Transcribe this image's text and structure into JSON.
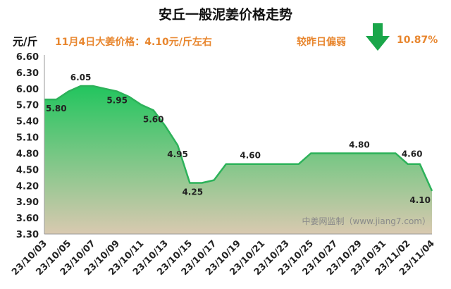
{
  "header": {
    "title": "安丘一般泥姜价格走势",
    "unit": "元/斤",
    "price_note": "11月4日大姜价格：4.10元/斤左右",
    "compare_label": "较昨日偏弱",
    "compare_value": "10.87%",
    "arrow_icon": "arrow-down-icon",
    "arrow_color": "#1aa64a"
  },
  "watermark": "中姜网监制（www.jiang7.com）",
  "chart_data": {
    "type": "area",
    "title": "安丘一般泥姜价格走势",
    "ylabel": "元/斤",
    "ylim": [
      3.3,
      6.6
    ],
    "yticks": [
      "3.30",
      "3.60",
      "3.90",
      "4.20",
      "4.50",
      "4.80",
      "5.10",
      "5.40",
      "5.70",
      "6.00",
      "6.30",
      "6.60"
    ],
    "xticks": [
      "23/10/03",
      "23/10/05",
      "23/10/07",
      "23/10/09",
      "23/10/11",
      "23/10/13",
      "23/10/15",
      "23/10/17",
      "23/10/19",
      "23/10/21",
      "23/10/23",
      "23/10/25",
      "23/10/27",
      "23/10/29",
      "23/10/31",
      "23/11/02",
      "23/11/04"
    ],
    "x": [
      "23/10/03",
      "23/10/04",
      "23/10/05",
      "23/10/06",
      "23/10/07",
      "23/10/08",
      "23/10/09",
      "23/10/10",
      "23/10/11",
      "23/10/12",
      "23/10/13",
      "23/10/14",
      "23/10/15",
      "23/10/16",
      "23/10/17",
      "23/10/18",
      "23/10/19",
      "23/10/20",
      "23/10/21",
      "23/10/22",
      "23/10/23",
      "23/10/24",
      "23/10/25",
      "23/10/26",
      "23/10/27",
      "23/10/28",
      "23/10/29",
      "23/10/30",
      "23/10/31",
      "23/11/01",
      "23/11/02",
      "23/11/03",
      "23/11/04"
    ],
    "values": [
      5.8,
      5.8,
      5.95,
      6.05,
      6.05,
      6.0,
      5.95,
      5.85,
      5.7,
      5.6,
      5.3,
      4.95,
      4.25,
      4.25,
      4.3,
      4.6,
      4.6,
      4.6,
      4.6,
      4.6,
      4.6,
      4.6,
      4.8,
      4.8,
      4.8,
      4.8,
      4.8,
      4.8,
      4.8,
      4.8,
      4.6,
      4.6,
      4.1
    ],
    "data_labels": [
      {
        "index": 0,
        "text": "5.80"
      },
      {
        "index": 3,
        "text": "6.05"
      },
      {
        "index": 6,
        "text": "5.95"
      },
      {
        "index": 9,
        "text": "5.60"
      },
      {
        "index": 11,
        "text": "4.95"
      },
      {
        "index": 12,
        "text": "4.25"
      },
      {
        "index": 17,
        "text": "4.60"
      },
      {
        "index": 26,
        "text": "4.80"
      },
      {
        "index": 30,
        "text": "4.60"
      },
      {
        "index": 32,
        "text": "4.10"
      }
    ],
    "line_color": "#2db25a",
    "fill_top_color": "#22c55e",
    "fill_bottom_color": "#d9c9b0",
    "grid": false
  }
}
